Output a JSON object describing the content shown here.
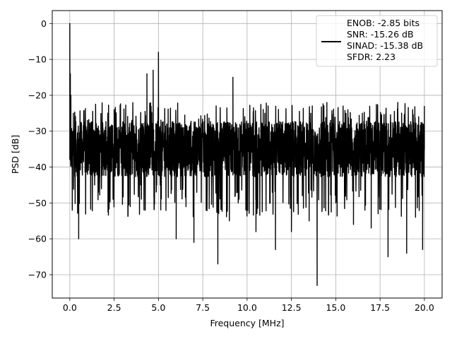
{
  "chart_data": {
    "type": "line",
    "title": "",
    "xlabel": "Frequency [MHz]",
    "ylabel": "PSD [dB]",
    "xlim": [
      -0.99,
      21.0
    ],
    "ylim": [
      -76.5,
      3.6
    ],
    "x_ticks": [
      0.0,
      2.5,
      5.0,
      7.5,
      10.0,
      12.5,
      15.0,
      17.5,
      20.0
    ],
    "x_tick_labels": [
      "0.0",
      "2.5",
      "5.0",
      "7.5",
      "10.0",
      "12.5",
      "15.0",
      "17.5",
      "20.0"
    ],
    "y_ticks": [
      0,
      -10,
      -20,
      -30,
      -40,
      -50,
      -60,
      -70
    ],
    "y_tick_labels": [
      "0",
      "−10",
      "−20",
      "−30",
      "−40",
      "−50",
      "−60",
      "−70"
    ],
    "grid": true,
    "legend_position": "top-right",
    "line_color": "#000000",
    "series": [
      {
        "name": "ENOB: -2.85 bits",
        "x": [
          0.0,
          0.03,
          0.06,
          0.1,
          0.2,
          0.35,
          0.5,
          0.55,
          1.0,
          1.4,
          2.0,
          2.5,
          3.0,
          3.5,
          4.0,
          4.35,
          4.5,
          4.7,
          4.9,
          5.0,
          5.1,
          5.5,
          6.0,
          6.6,
          7.0,
          7.5,
          8.0,
          8.35,
          8.5,
          9.0,
          9.2,
          9.5,
          10.0,
          10.5,
          11.0,
          11.6,
          12.0,
          12.5,
          13.0,
          13.5,
          13.95,
          14.5,
          15.0,
          15.5,
          16.0,
          16.5,
          17.0,
          17.5,
          17.95,
          18.5,
          19.0,
          19.5,
          19.9,
          20.0
        ],
        "values": [
          0,
          -14,
          -20,
          -36,
          -25,
          -40,
          -60,
          -33,
          -27,
          -45,
          -37,
          -24,
          -45,
          -27,
          -45,
          -14,
          -40,
          -13,
          -45,
          -8,
          -45,
          -40,
          -60,
          -35,
          -61,
          -30,
          -45,
          -67,
          -28,
          -55,
          -15,
          -50,
          -30,
          -58,
          -25,
          -63,
          -30,
          -58,
          -33,
          -55,
          -73,
          -22,
          -50,
          -28,
          -56,
          -25,
          -57,
          -30,
          -65,
          -22,
          -64,
          -30,
          -63,
          -23
        ]
      }
    ],
    "legend_entries": [
      "ENOB: -2.85 bits",
      "SNR: -15.26 dB",
      "SINAD: -15.38 dB",
      "SFDR: 2.23"
    ],
    "noise_band": {
      "upper_db": -24,
      "lower_db": -46
    }
  }
}
